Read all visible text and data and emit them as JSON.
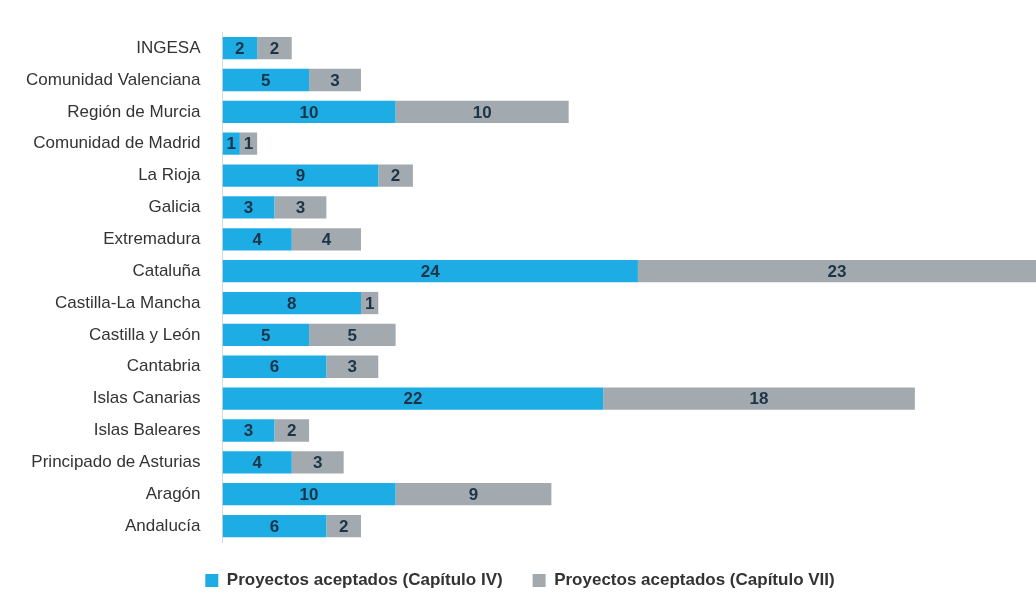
{
  "chart_data": {
    "type": "bar",
    "orientation": "horizontal",
    "stacked": true,
    "data_labels": true,
    "legend": "bottom",
    "categories": [
      "INGESA",
      "Comunidad Valenciana",
      "Región de Murcia",
      "Comunidad de Madrid",
      "La Rioja",
      "Galicia",
      "Extremadura",
      "Cataluña",
      "Castilla-La Mancha",
      "Castilla y León",
      "Cantabria",
      "Islas Canarias",
      "Islas Baleares",
      "Principado de Asturias",
      "Aragón",
      "Andalucía"
    ],
    "series": [
      {
        "name": "Proyectos aceptados (Capítulo IV)",
        "color": "#1eace4",
        "values": [
          2,
          5,
          10,
          1,
          9,
          3,
          4,
          24,
          8,
          5,
          6,
          22,
          3,
          4,
          10,
          6
        ]
      },
      {
        "name": "Proyectos aceptados (Capítulo VII)",
        "color": "#a2aaaf",
        "values": [
          2,
          3,
          10,
          1,
          2,
          3,
          4,
          23,
          1,
          5,
          3,
          18,
          2,
          3,
          9,
          2
        ]
      }
    ]
  }
}
